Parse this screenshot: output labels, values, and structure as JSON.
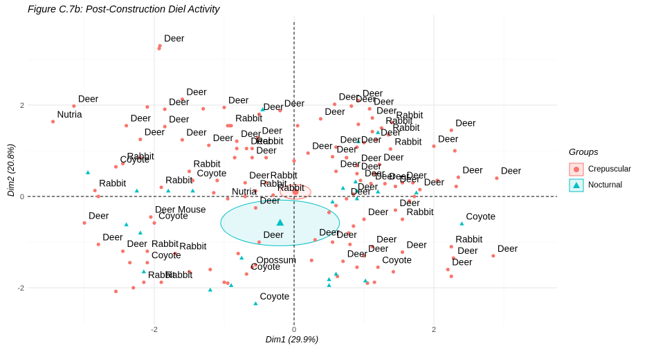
{
  "chart_data": {
    "type": "scatter",
    "title": "Figure C.7b: Post-Construction Diel Activity",
    "xlabel": "Dim1 (29.9%)",
    "ylabel": "Dim2 (20.8%)",
    "xlim": [
      -3.0,
      3.2
    ],
    "ylim": [
      -2.3,
      3.8
    ],
    "x_ticks": [
      -2,
      0,
      2
    ],
    "y_ticks": [
      -2,
      0,
      2
    ],
    "x_tick_labels": [
      "-2",
      "0",
      "2"
    ],
    "y_tick_labels": [
      "-2",
      "0",
      "2"
    ],
    "grid": true,
    "reference_lines": {
      "x": 0,
      "y": 0,
      "style": "dashed"
    },
    "legend": {
      "title": "Groups",
      "placement": "right",
      "entries": [
        {
          "name": "Crepuscular",
          "color": "#F8766D",
          "shape": "circle"
        },
        {
          "name": "Nocturnal",
          "color": "#00BFC4",
          "shape": "triangle"
        }
      ]
    },
    "group_means": [
      {
        "group": "Crepuscular",
        "x": 0.02,
        "y": 0.1,
        "ellipse_rx": 0.22,
        "ellipse_ry": 0.16
      },
      {
        "group": "Nocturnal",
        "x": -0.2,
        "y": -0.58,
        "ellipse_rx": 0.85,
        "ellipse_ry": 0.5
      }
    ],
    "series": [
      {
        "name": "Crepuscular",
        "color": "#F8766D",
        "shape": "circle",
        "points": [
          {
            "x": -1.92,
            "y": 3.3,
            "label": "Deer"
          },
          {
            "x": -1.93,
            "y": 3.24,
            "label": ""
          },
          {
            "x": -3.45,
            "y": 1.64,
            "label": "Nutria"
          },
          {
            "x": -3.15,
            "y": 1.98,
            "label": "Deer"
          },
          {
            "x": -2.1,
            "y": 1.96,
            "label": ""
          },
          {
            "x": -1.6,
            "y": 2.13,
            "label": "Deer"
          },
          {
            "x": -1.85,
            "y": 1.91,
            "label": "Deer"
          },
          {
            "x": -1.3,
            "y": 1.92,
            "label": ""
          },
          {
            "x": -1.0,
            "y": 1.95,
            "label": "Deer"
          },
          {
            "x": -2.4,
            "y": 1.55,
            "label": "Deer"
          },
          {
            "x": -1.85,
            "y": 1.53,
            "label": "Deer"
          },
          {
            "x": -2.2,
            "y": 1.25,
            "label": "Deer"
          },
          {
            "x": -1.6,
            "y": 1.24,
            "label": "Deer"
          },
          {
            "x": -1.22,
            "y": 1.12,
            "label": "Deer"
          },
          {
            "x": -0.95,
            "y": 1.55,
            "label": ""
          },
          {
            "x": -0.92,
            "y": 1.55,
            "label": ""
          },
          {
            "x": -0.82,
            "y": 1.21,
            "label": "Deer"
          },
          {
            "x": -0.52,
            "y": 1.28,
            "label": "Deer"
          },
          {
            "x": -0.68,
            "y": 1.05,
            "label": "Deer"
          },
          {
            "x": -0.82,
            "y": 1.05,
            "label": ""
          },
          {
            "x": -0.6,
            "y": 1.05,
            "label": "Rabbit"
          },
          {
            "x": -0.85,
            "y": 0.85,
            "label": ""
          },
          {
            "x": -0.6,
            "y": 0.85,
            "label": "Deer"
          },
          {
            "x": -0.4,
            "y": 0.85,
            "label": ""
          },
          {
            "x": -0.5,
            "y": 1.8,
            "label": "Deer"
          },
          {
            "x": -0.2,
            "y": 1.88,
            "label": "Deer"
          },
          {
            "x": -0.9,
            "y": 1.55,
            "label": "Rabbit"
          },
          {
            "x": 0.05,
            "y": 1.55,
            "label": ""
          },
          {
            "x": 0.38,
            "y": 1.7,
            "label": "Deer"
          },
          {
            "x": 0.58,
            "y": 2.02,
            "label": "Deer"
          },
          {
            "x": 0.82,
            "y": 1.98,
            "label": "Deer"
          },
          {
            "x": 0.92,
            "y": 2.1,
            "label": "Deer"
          },
          {
            "x": 1.08,
            "y": 1.92,
            "label": "Deer"
          },
          {
            "x": 1.12,
            "y": 1.72,
            "label": "Deer"
          },
          {
            "x": 1.4,
            "y": 1.62,
            "label": "Rabbit"
          },
          {
            "x": 1.25,
            "y": 1.5,
            "label": "Rabbit"
          },
          {
            "x": 1.35,
            "y": 1.35,
            "label": "Rabbit"
          },
          {
            "x": 1.12,
            "y": 1.42,
            "label": ""
          },
          {
            "x": 0.92,
            "y": 1.58,
            "label": ""
          },
          {
            "x": 1.18,
            "y": 1.24,
            "label": "Deer"
          },
          {
            "x": 0.9,
            "y": 1.08,
            "label": "Deer"
          },
          {
            "x": 0.6,
            "y": 1.08,
            "label": "Deer"
          },
          {
            "x": 1.0,
            "y": 1.18,
            "label": ""
          },
          {
            "x": 1.38,
            "y": 1.04,
            "label": "Rabbit"
          },
          {
            "x": 0.55,
            "y": 0.87,
            "label": "Deer"
          },
          {
            "x": 0.75,
            "y": 0.85,
            "label": ""
          },
          {
            "x": 0.2,
            "y": 0.95,
            "label": "Deer"
          },
          {
            "x": 0.0,
            "y": 0.78,
            "label": ""
          },
          {
            "x": 1.22,
            "y": 0.7,
            "label": "Deer"
          },
          {
            "x": 0.9,
            "y": 0.68,
            "label": "Deer"
          },
          {
            "x": 1.15,
            "y": 0.5,
            "label": ""
          },
          {
            "x": 0.6,
            "y": 0.55,
            "label": "Deer"
          },
          {
            "x": 0.9,
            "y": 0.5,
            "label": "Deer"
          },
          {
            "x": 0.95,
            "y": 0.35,
            "label": "Deer"
          },
          {
            "x": 1.1,
            "y": 0.28,
            "label": "Deer"
          },
          {
            "x": 1.3,
            "y": 0.28,
            "label": "Deer"
          },
          {
            "x": 1.45,
            "y": 0.22,
            "label": "Deer"
          },
          {
            "x": 1.55,
            "y": 0.3,
            "label": "Deer"
          },
          {
            "x": 1.7,
            "y": 0.3,
            "label": ""
          },
          {
            "x": 1.8,
            "y": 0.15,
            "label": "Deer"
          },
          {
            "x": 1.72,
            "y": 0.0,
            "label": ""
          },
          {
            "x": 1.65,
            "y": -0.1,
            "label": ""
          },
          {
            "x": 0.85,
            "y": 0.05,
            "label": "Deer"
          },
          {
            "x": 0.75,
            "y": -0.05,
            "label": "Deer"
          },
          {
            "x": 0.6,
            "y": -0.2,
            "label": ""
          },
          {
            "x": 0.5,
            "y": -0.35,
            "label": ""
          },
          {
            "x": 1.45,
            "y": -0.3,
            "label": "Deer"
          },
          {
            "x": 1.55,
            "y": -0.5,
            "label": "Rabbit"
          },
          {
            "x": 1.0,
            "y": -0.5,
            "label": "Deer"
          },
          {
            "x": 0.85,
            "y": -0.65,
            "label": ""
          },
          {
            "x": 0.78,
            "y": -0.8,
            "label": ""
          },
          {
            "x": 0.3,
            "y": -0.95,
            "label": "Deer"
          },
          {
            "x": 0.55,
            "y": -1.0,
            "label": "Deer"
          },
          {
            "x": 0.8,
            "y": -1.05,
            "label": ""
          },
          {
            "x": 1.12,
            "y": -1.1,
            "label": "Deer"
          },
          {
            "x": 1.55,
            "y": -1.22,
            "label": "Deer"
          },
          {
            "x": 1.0,
            "y": -1.3,
            "label": "Deer"
          },
          {
            "x": 0.7,
            "y": -1.42,
            "label": "Deer"
          },
          {
            "x": 0.9,
            "y": -1.55,
            "label": ""
          },
          {
            "x": 1.2,
            "y": -1.55,
            "label": "Coyote"
          },
          {
            "x": 1.42,
            "y": -1.65,
            "label": ""
          },
          {
            "x": 1.15,
            "y": -1.88,
            "label": ""
          },
          {
            "x": 1.05,
            "y": -1.9,
            "label": ""
          },
          {
            "x": 0.62,
            "y": -1.75,
            "label": ""
          },
          {
            "x": 0.25,
            "y": -1.4,
            "label": ""
          },
          {
            "x": 2.25,
            "y": 1.45,
            "label": "Deer"
          },
          {
            "x": 2.0,
            "y": 1.1,
            "label": "Deer"
          },
          {
            "x": 2.3,
            "y": 1.0,
            "label": ""
          },
          {
            "x": 2.35,
            "y": 0.42,
            "label": "Deer"
          },
          {
            "x": 2.05,
            "y": 0.35,
            "label": ""
          },
          {
            "x": 2.9,
            "y": 0.4,
            "label": "Deer"
          },
          {
            "x": 2.32,
            "y": 0.22,
            "label": ""
          },
          {
            "x": 2.25,
            "y": -1.1,
            "label": "Rabbit"
          },
          {
            "x": 2.28,
            "y": -1.35,
            "label": "Deer"
          },
          {
            "x": 2.2,
            "y": -1.6,
            "label": "Deer"
          },
          {
            "x": 2.85,
            "y": -1.3,
            "label": "Deer"
          },
          {
            "x": 2.25,
            "y": -1.75,
            "label": ""
          },
          {
            "x": -3.0,
            "y": -0.58,
            "label": "Deer"
          },
          {
            "x": -2.85,
            "y": 0.13,
            "label": "Rabbit"
          },
          {
            "x": -2.8,
            "y": 0.0,
            "label": ""
          },
          {
            "x": -2.55,
            "y": 0.65,
            "label": "Coyote"
          },
          {
            "x": -2.45,
            "y": 0.72,
            "label": "Rabbit"
          },
          {
            "x": -2.2,
            "y": 0.85,
            "label": ""
          },
          {
            "x": -1.9,
            "y": 0.2,
            "label": "Rabbit"
          },
          {
            "x": -1.5,
            "y": 0.55,
            "label": "Rabbit"
          },
          {
            "x": -1.45,
            "y": 0.35,
            "label": "Coyote"
          },
          {
            "x": -1.1,
            "y": 0.35,
            "label": ""
          },
          {
            "x": -1.15,
            "y": 0.08,
            "label": ""
          },
          {
            "x": -0.95,
            "y": -0.05,
            "label": "Nutria"
          },
          {
            "x": -0.7,
            "y": 0.3,
            "label": "Deer"
          },
          {
            "x": -0.4,
            "y": 0.3,
            "label": "Rabbit"
          },
          {
            "x": -0.55,
            "y": 0.12,
            "label": "Rabbit"
          },
          {
            "x": -0.7,
            "y": 0.0,
            "label": ""
          },
          {
            "x": -0.3,
            "y": 0.03,
            "label": "Rabbit"
          },
          {
            "x": -0.55,
            "y": -0.25,
            "label": "Deer"
          },
          {
            "x": -2.05,
            "y": -0.45,
            "label": "Deer Mouse"
          },
          {
            "x": -2.0,
            "y": -0.58,
            "label": "Coyote"
          },
          {
            "x": -2.8,
            "y": -1.05,
            "label": "Deer"
          },
          {
            "x": -2.45,
            "y": -1.2,
            "label": "Deer"
          },
          {
            "x": -2.1,
            "y": -1.2,
            "label": "Rabbit"
          },
          {
            "x": -1.7,
            "y": -1.25,
            "label": "Rabbit"
          },
          {
            "x": -2.1,
            "y": -1.45,
            "label": "Coyote"
          },
          {
            "x": -2.35,
            "y": -1.45,
            "label": ""
          },
          {
            "x": -1.9,
            "y": -1.88,
            "label": "Rabbit"
          },
          {
            "x": -2.15,
            "y": -1.88,
            "label": "Rabbit"
          },
          {
            "x": -2.55,
            "y": -2.08,
            "label": ""
          },
          {
            "x": -2.3,
            "y": -2.0,
            "label": ""
          },
          {
            "x": -1.5,
            "y": -1.65,
            "label": ""
          },
          {
            "x": -1.2,
            "y": -1.6,
            "label": ""
          },
          {
            "x": -1.0,
            "y": -1.88,
            "label": ""
          },
          {
            "x": -0.95,
            "y": -1.9,
            "label": ""
          },
          {
            "x": -0.6,
            "y": -1.55,
            "label": "Opossum"
          },
          {
            "x": -0.68,
            "y": -1.7,
            "label": "Coyote"
          },
          {
            "x": -0.8,
            "y": -1.25,
            "label": ""
          },
          {
            "x": -0.5,
            "y": -1.0,
            "label": "Deer"
          },
          {
            "x": -0.55,
            "y": -1.5,
            "label": ""
          }
        ]
      },
      {
        "name": "Nocturnal",
        "color": "#00BFC4",
        "shape": "triangle",
        "points": [
          {
            "x": -0.45,
            "y": 1.9,
            "label": ""
          },
          {
            "x": 1.2,
            "y": 1.4,
            "label": ""
          },
          {
            "x": 0.92,
            "y": 1.2,
            "label": ""
          },
          {
            "x": 0.88,
            "y": 0.32,
            "label": ""
          },
          {
            "x": 0.7,
            "y": 0.18,
            "label": ""
          },
          {
            "x": 0.9,
            "y": 0.12,
            "label": ""
          },
          {
            "x": 1.2,
            "y": 0.1,
            "label": ""
          },
          {
            "x": 1.75,
            "y": 0.08,
            "label": ""
          },
          {
            "x": 0.55,
            "y": -0.12,
            "label": ""
          },
          {
            "x": 0.9,
            "y": -0.05,
            "label": ""
          },
          {
            "x": 2.4,
            "y": -0.6,
            "label": "Coyote"
          },
          {
            "x": -2.95,
            "y": 0.52,
            "label": ""
          },
          {
            "x": -2.25,
            "y": 0.12,
            "label": ""
          },
          {
            "x": -1.8,
            "y": 0.12,
            "label": ""
          },
          {
            "x": -1.45,
            "y": 0.12,
            "label": ""
          },
          {
            "x": -2.4,
            "y": -0.62,
            "label": ""
          },
          {
            "x": -2.2,
            "y": -0.8,
            "label": ""
          },
          {
            "x": -2.15,
            "y": -1.65,
            "label": ""
          },
          {
            "x": -1.2,
            "y": -2.05,
            "label": ""
          },
          {
            "x": -0.9,
            "y": -1.95,
            "label": ""
          },
          {
            "x": -0.75,
            "y": -1.35,
            "label": ""
          },
          {
            "x": -0.55,
            "y": -2.35,
            "label": "Coyote"
          },
          {
            "x": 0.5,
            "y": -1.82,
            "label": ""
          },
          {
            "x": 0.5,
            "y": -1.95,
            "label": ""
          },
          {
            "x": 1.02,
            "y": -1.85,
            "label": ""
          },
          {
            "x": 0.6,
            "y": -1.7,
            "label": ""
          },
          {
            "x": -0.45,
            "y": 1.9,
            "label": ""
          }
        ]
      }
    ]
  }
}
